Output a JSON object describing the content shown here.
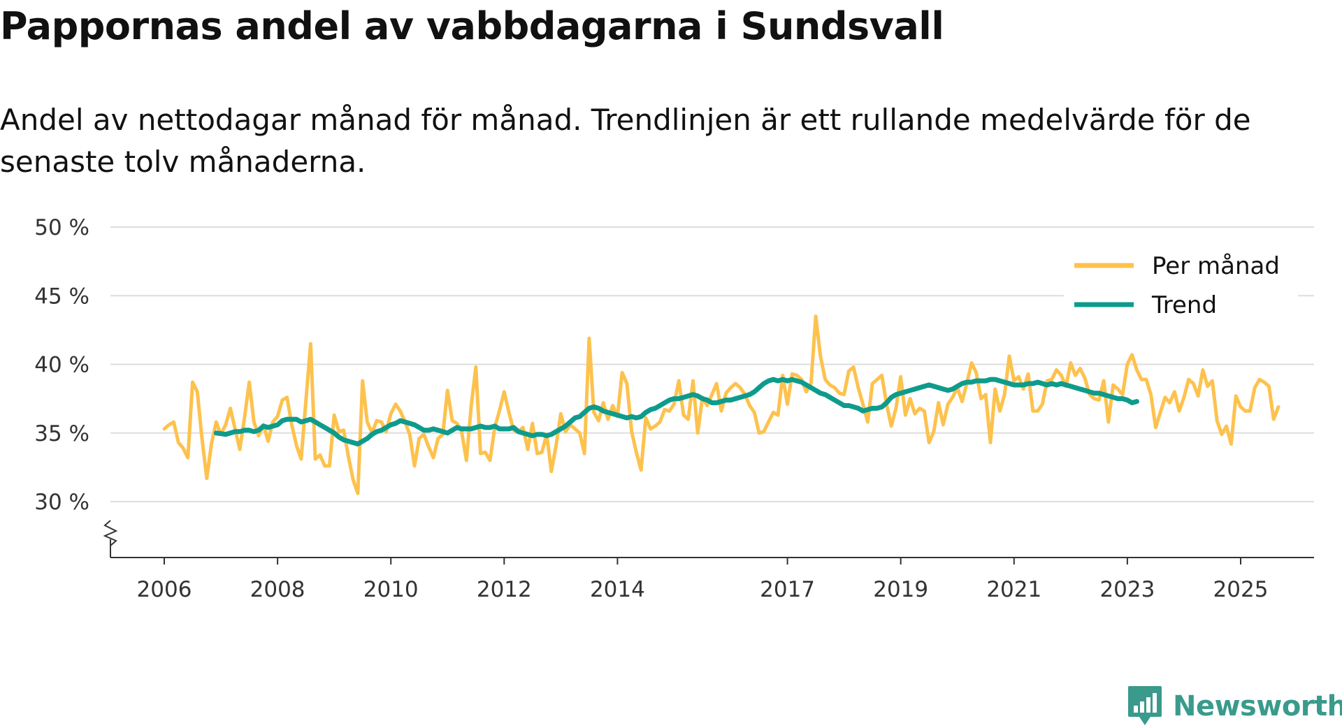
{
  "title": "Pappornas andel av vabbdagarna i Sundsvall",
  "subtitle": "Andel av nettodagar månad för månad. Trendlinjen är ett rullande medelvärde för de senaste tolv månaderna.",
  "brand": "Newsworthy",
  "colors": {
    "monthly": "#fdc24e",
    "trend": "#0e9b8c",
    "grid": "#dddddd",
    "axis": "#333333",
    "brand": "#3a9a8c"
  },
  "chart_data": {
    "type": "line",
    "title": "Pappornas andel av vabbdagarna i Sundsvall",
    "ylabel": "",
    "xlabel": "",
    "ylim": [
      26,
      50
    ],
    "y_ticks": [
      30,
      35,
      40,
      45,
      50
    ],
    "y_tick_labels": [
      "30 %",
      "35 %",
      "40 %",
      "45 %",
      "50 %"
    ],
    "x_range": [
      2006,
      2025.67
    ],
    "x_ticks": [
      2006,
      2008,
      2010,
      2012,
      2014,
      2017,
      2019,
      2021,
      2023,
      2025
    ],
    "x_tick_labels": [
      "2006",
      "2008",
      "2010",
      "2012",
      "2014",
      "2017",
      "2019",
      "2021",
      "2023",
      "2025"
    ],
    "legend_position": "top-right",
    "series": [
      {
        "name": "Per månad",
        "start": 2006.0,
        "step": 0.08333,
        "values": [
          35.3,
          35.6,
          35.8,
          34.3,
          33.9,
          33.2,
          38.7,
          38.0,
          34.6,
          31.7,
          34.2,
          35.8,
          34.9,
          35.6,
          36.8,
          35.3,
          33.8,
          36.1,
          38.7,
          35.8,
          34.8,
          35.6,
          34.4,
          35.8,
          36.2,
          37.4,
          37.6,
          35.6,
          34.1,
          33.1,
          37.3,
          41.5,
          33.1,
          33.4,
          32.6,
          32.6,
          36.3,
          35.1,
          35.2,
          33.3,
          31.6,
          30.6,
          38.8,
          35.8,
          35.0,
          35.9,
          35.8,
          35.1,
          36.4,
          37.1,
          36.6,
          35.8,
          34.9,
          32.6,
          34.6,
          34.9,
          34.0,
          33.2,
          34.6,
          34.9,
          38.1,
          35.9,
          35.7,
          35.1,
          33.0,
          36.9,
          39.8,
          33.5,
          33.6,
          33.0,
          35.4,
          36.6,
          38.0,
          36.5,
          35.2,
          35.1,
          35.4,
          33.8,
          35.7,
          33.5,
          33.6,
          34.9,
          32.2,
          34.1,
          36.4,
          35.1,
          35.6,
          35.3,
          35.0,
          33.5,
          41.9,
          36.5,
          35.9,
          37.2,
          36.0,
          37.0,
          36.2,
          39.4,
          38.6,
          35.1,
          33.6,
          32.3,
          36.1,
          35.3,
          35.5,
          35.8,
          36.7,
          36.6,
          37.1,
          38.8,
          36.3,
          36.0,
          38.8,
          35.0,
          37.6,
          37.0,
          37.8,
          38.6,
          36.6,
          37.9,
          38.3,
          38.6,
          38.3,
          37.8,
          37.0,
          36.5,
          35.0,
          35.1,
          35.8,
          36.5,
          36.3,
          39.2,
          37.1,
          39.3,
          39.2,
          38.9,
          38.0,
          38.6,
          43.5,
          40.6,
          38.9,
          38.5,
          38.3,
          37.9,
          37.8,
          39.5,
          39.8,
          38.3,
          37.1,
          35.8,
          38.6,
          38.9,
          39.2,
          37.1,
          35.5,
          36.8,
          39.1,
          36.3,
          37.5,
          36.4,
          36.8,
          36.6,
          34.3,
          35.1,
          37.2,
          35.6,
          37.1,
          37.6,
          38.3,
          37.3,
          38.6,
          40.1,
          39.4,
          37.5,
          37.8,
          34.3,
          38.2,
          36.6,
          37.8,
          40.6,
          38.8,
          39.1,
          38.2,
          39.3,
          36.6,
          36.6,
          37.1,
          38.8,
          38.9,
          39.6,
          39.2,
          38.4,
          40.1,
          39.2,
          39.7,
          39.0,
          37.8,
          37.5,
          37.4,
          38.8,
          35.8,
          38.5,
          38.2,
          37.8,
          40.0,
          40.7,
          39.6,
          38.9,
          38.9,
          37.8,
          35.4,
          36.5,
          37.6,
          37.2,
          38.0,
          36.6,
          37.6,
          38.9,
          38.6,
          37.7,
          39.6,
          38.4,
          38.8,
          35.9,
          34.9,
          35.5,
          34.2,
          37.7,
          36.9,
          36.6,
          36.6,
          38.3,
          38.9,
          38.7,
          38.4,
          36.0,
          36.9
        ]
      },
      {
        "name": "Trend",
        "start": 2006.917,
        "step": 0.08333,
        "values": [
          35.0,
          34.95,
          34.9,
          35.0,
          35.1,
          35.1,
          35.2,
          35.2,
          35.1,
          35.2,
          35.5,
          35.4,
          35.5,
          35.6,
          35.9,
          36.0,
          36.0,
          36.0,
          35.8,
          35.9,
          36.0,
          35.8,
          35.6,
          35.4,
          35.2,
          35.0,
          34.7,
          34.5,
          34.4,
          34.3,
          34.2,
          34.4,
          34.6,
          34.9,
          35.1,
          35.2,
          35.4,
          35.6,
          35.7,
          35.9,
          35.8,
          35.7,
          35.6,
          35.4,
          35.2,
          35.2,
          35.3,
          35.2,
          35.1,
          35.0,
          35.2,
          35.4,
          35.3,
          35.3,
          35.3,
          35.4,
          35.5,
          35.4,
          35.4,
          35.5,
          35.3,
          35.3,
          35.3,
          35.4,
          35.1,
          35.0,
          34.9,
          34.8,
          34.9,
          34.9,
          34.8,
          34.9,
          35.1,
          35.3,
          35.5,
          35.8,
          36.1,
          36.2,
          36.5,
          36.8,
          36.9,
          36.8,
          36.6,
          36.5,
          36.4,
          36.3,
          36.2,
          36.1,
          36.2,
          36.1,
          36.2,
          36.5,
          36.7,
          36.8,
          37.0,
          37.2,
          37.4,
          37.5,
          37.5,
          37.6,
          37.7,
          37.8,
          37.7,
          37.5,
          37.4,
          37.2,
          37.2,
          37.3,
          37.4,
          37.4,
          37.5,
          37.6,
          37.7,
          37.8,
          38.0,
          38.3,
          38.6,
          38.8,
          38.9,
          38.8,
          38.9,
          38.8,
          38.9,
          38.8,
          38.7,
          38.5,
          38.3,
          38.1,
          37.9,
          37.8,
          37.6,
          37.4,
          37.2,
          37.0,
          37.0,
          36.9,
          36.8,
          36.6,
          36.7,
          36.8,
          36.8,
          36.9,
          37.2,
          37.6,
          37.8,
          37.9,
          38.0,
          38.1,
          38.2,
          38.3,
          38.4,
          38.5,
          38.4,
          38.3,
          38.2,
          38.1,
          38.2,
          38.4,
          38.6,
          38.7,
          38.7,
          38.8,
          38.8,
          38.8,
          38.9,
          38.9,
          38.8,
          38.7,
          38.6,
          38.5,
          38.5,
          38.5,
          38.6,
          38.6,
          38.7,
          38.6,
          38.5,
          38.6,
          38.5,
          38.6,
          38.5,
          38.4,
          38.3,
          38.2,
          38.1,
          38.0,
          37.9,
          37.9,
          37.8,
          37.7,
          37.6,
          37.5,
          37.5,
          37.4,
          37.2,
          37.3
        ]
      }
    ]
  }
}
